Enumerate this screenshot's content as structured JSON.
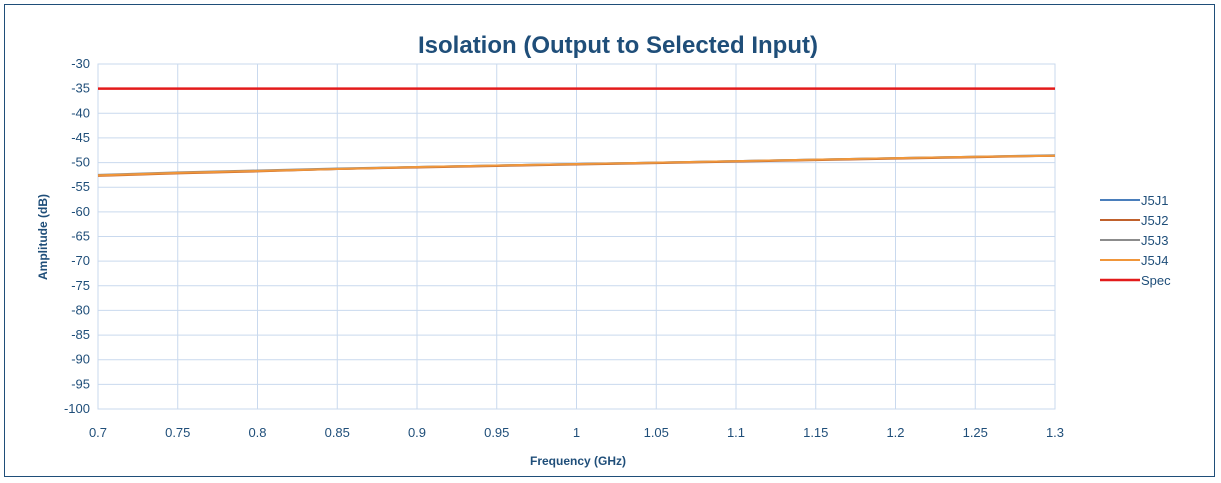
{
  "chart_data": {
    "type": "line",
    "title": "Isolation (Output to Selected Input)",
    "xlabel": "Frequency (GHz)",
    "ylabel": "Amplitude (dB)",
    "xlim": [
      0.7,
      1.3
    ],
    "ylim": [
      -100,
      -30
    ],
    "x_ticks": [
      "0.7",
      "0.75",
      "0.8",
      "0.85",
      "0.9",
      "0.95",
      "1",
      "1.05",
      "1.1",
      "1.15",
      "1.2",
      "1.25",
      "1.3"
    ],
    "y_ticks": [
      "-30",
      "-35",
      "-40",
      "-45",
      "-50",
      "-55",
      "-60",
      "-65",
      "-70",
      "-75",
      "-80",
      "-85",
      "-90",
      "-95",
      "-100"
    ],
    "grid": true,
    "legend_position": "right",
    "x": [
      0.7,
      0.75,
      0.8,
      0.85,
      0.9,
      0.95,
      1.0,
      1.05,
      1.1,
      1.15,
      1.2,
      1.25,
      1.3
    ],
    "series": [
      {
        "name": "J5J1",
        "color": "#4a7ebb",
        "values": [
          -52.6,
          -52.1,
          -51.7,
          -51.3,
          -50.9,
          -50.6,
          -50.3,
          -50.0,
          -49.7,
          -49.4,
          -49.1,
          -48.8,
          -48.6
        ]
      },
      {
        "name": "J5J2",
        "color": "#c0612c",
        "values": [
          -52.7,
          -52.2,
          -51.8,
          -51.3,
          -51.0,
          -50.7,
          -50.4,
          -50.1,
          -49.8,
          -49.5,
          -49.2,
          -48.9,
          -48.6
        ]
      },
      {
        "name": "J5J3",
        "color": "#8c8c8c",
        "values": [
          -52.5,
          -52.0,
          -51.6,
          -51.2,
          -50.9,
          -50.6,
          -50.3,
          -50.0,
          -49.7,
          -49.4,
          -49.1,
          -48.8,
          -48.5
        ]
      },
      {
        "name": "J5J4",
        "color": "#f0963a",
        "values": [
          -52.6,
          -52.1,
          -51.7,
          -51.3,
          -50.9,
          -50.6,
          -50.3,
          -50.0,
          -49.7,
          -49.4,
          -49.1,
          -48.8,
          -48.6
        ]
      },
      {
        "name": "Spec",
        "color": "#e31b1b",
        "values": [
          -35,
          -35,
          -35,
          -35,
          -35,
          -35,
          -35,
          -35,
          -35,
          -35,
          -35,
          -35,
          -35
        ]
      }
    ]
  }
}
